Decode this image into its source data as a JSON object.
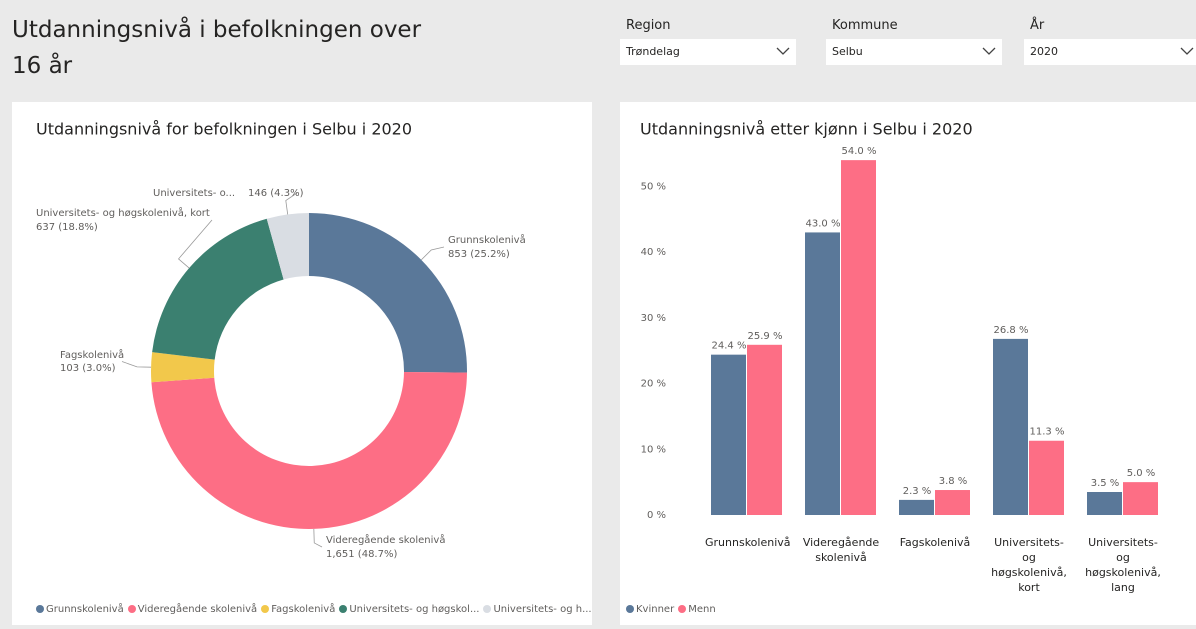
{
  "header": {
    "title": "Utdanningsnivå i befolkningen over 16 år"
  },
  "filters": [
    {
      "label": "Region",
      "value": "Trøndelag"
    },
    {
      "label": "Kommune",
      "value": "Selbu"
    },
    {
      "label": "År",
      "value": "2020"
    }
  ],
  "chart_data": [
    {
      "type": "pie",
      "title": "Utdanningsnivå for befolkningen i Selbu i 2020",
      "categories": [
        "Grunnskolenivå",
        "Videregående skolenivå",
        "Fagskolenivå",
        "Universitets- og høgskol...",
        "Universitets- og h..."
      ],
      "slice_labels": [
        "Grunnskolenivå",
        "Videregående skolenivå",
        "Fagskolenivå",
        "Universitets- og høgskolenivå, kort",
        "Universitets- o..."
      ],
      "values": [
        853,
        1651,
        103,
        637,
        146
      ],
      "value_labels": [
        "853 (25.2%)",
        "1,651 (48.7%)",
        "103 (3.0%)",
        "637 (18.8%)",
        "146 (4.3%)"
      ],
      "colors": [
        "#5a7899",
        "#fd6e85",
        "#f2c84b",
        "#3b8070",
        "#d9dde3"
      ]
    },
    {
      "type": "bar",
      "title": "Utdanningsnivå etter kjønn i Selbu i 2020",
      "categories": [
        "Grunnskolenivå",
        "Videregående skolenivå",
        "Fagskolenivå",
        "Universitets- og høgskolenivå, kort",
        "Universitets- og høgskolenivå, lang"
      ],
      "series": [
        {
          "name": "Kvinner",
          "color": "#5a7899",
          "values": [
            24.4,
            43.0,
            2.3,
            26.8,
            3.5
          ],
          "value_labels": [
            "24.4 %",
            "43.0 %",
            "2.3 %",
            "26.8 %",
            "3.5 %"
          ]
        },
        {
          "name": "Menn",
          "color": "#fd6e85",
          "values": [
            25.9,
            54.0,
            3.8,
            11.3,
            5.0
          ],
          "value_labels": [
            "25.9 %",
            "54.0 %",
            "3.8 %",
            "11.3 %",
            "5.0 %"
          ]
        }
      ],
      "ylim": [
        0,
        56
      ],
      "yticks": [
        {
          "value": 0,
          "label": "0 %"
        },
        {
          "value": 10,
          "label": "10 %"
        },
        {
          "value": 20,
          "label": "20 %"
        },
        {
          "value": 30,
          "label": "30 %"
        },
        {
          "value": 40,
          "label": "40 %"
        },
        {
          "value": 50,
          "label": "50 %"
        }
      ],
      "grid": false
    }
  ]
}
